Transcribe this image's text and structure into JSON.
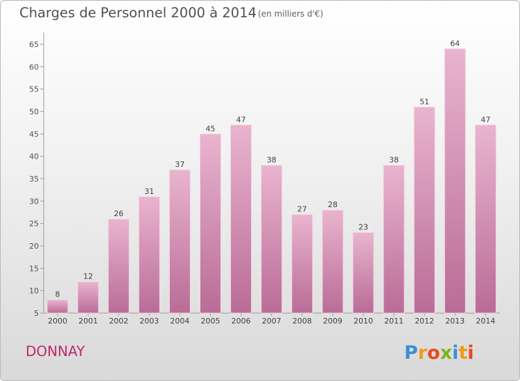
{
  "header": {
    "title": "Charges de Personnel 2000 à 2014",
    "subtitle": "(en milliers d'€)"
  },
  "footer": {
    "commune": "DONNAY",
    "logo_text": "Proxiti"
  },
  "colors": {
    "bar": "#d98fb5",
    "bar_light": "#eab6d0",
    "bar_dark": "#b86a95",
    "commune": "#c0296b"
  },
  "chart_data": {
    "type": "bar",
    "title": "Charges de Personnel 2000 à 2014",
    "subtitle": "(en milliers d'€)",
    "categories": [
      "2000",
      "2001",
      "2002",
      "2003",
      "2004",
      "2005",
      "2006",
      "2007",
      "2008",
      "2009",
      "2010",
      "2011",
      "2012",
      "2013",
      "2014"
    ],
    "values": [
      8,
      12,
      26,
      31,
      37,
      45,
      47,
      38,
      27,
      28,
      23,
      38,
      51,
      64,
      47
    ],
    "data_labels": [
      "8",
      "12",
      "26",
      "31",
      "37",
      "45",
      "47",
      "38",
      "27",
      "28",
      "23",
      "38",
      "51",
      "64",
      "47"
    ],
    "ylim": [
      5,
      67
    ],
    "yticks": [
      5,
      10,
      15,
      20,
      25,
      30,
      35,
      40,
      45,
      50,
      55,
      60,
      65
    ],
    "ytick_labels": [
      "5",
      "10",
      "15",
      "20",
      "25",
      "30",
      "35",
      "40",
      "45",
      "50",
      "55",
      "60",
      "65"
    ],
    "xlabel": "",
    "ylabel": "",
    "grid": false,
    "legend": "none"
  }
}
